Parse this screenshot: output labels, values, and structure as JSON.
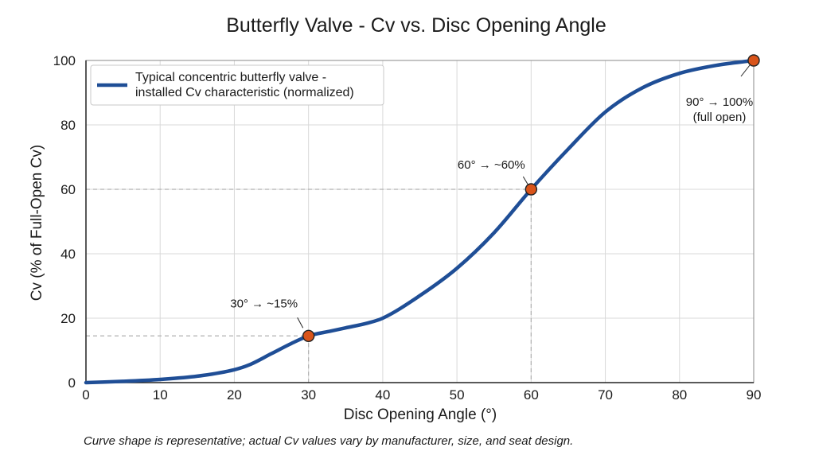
{
  "chart_data": {
    "type": "line",
    "title": "Butterfly Valve - Cv vs. Disc Opening Angle",
    "xlabel": "Disc Opening Angle (°)",
    "ylabel": "Cv (% of Full-Open Cv)",
    "xlim": [
      0,
      90
    ],
    "ylim": [
      0,
      100
    ],
    "xticks": [
      0,
      10,
      20,
      30,
      40,
      50,
      60,
      70,
      80,
      90
    ],
    "yticks": [
      0,
      20,
      40,
      60,
      80,
      100
    ],
    "grid": true,
    "legend_position": "top-left",
    "series": [
      {
        "name": "Typical concentric butterfly valve - installed Cv characteristic (normalized)",
        "legend_lines": [
          "Typical concentric butterfly valve -",
          "installed Cv characteristic (normalized)"
        ],
        "color": "#1f4e96",
        "x": [
          0,
          5,
          10,
          15,
          20,
          22,
          25,
          28,
          30,
          33,
          35,
          38,
          40,
          45,
          50,
          55,
          60,
          65,
          70,
          75,
          80,
          85,
          90
        ],
        "y": [
          0,
          0.4,
          1,
          2,
          4,
          5.5,
          9,
          12.5,
          14.5,
          16,
          17,
          18.5,
          20,
          27,
          35.5,
          46.5,
          60,
          72.5,
          84,
          91.5,
          96,
          98.5,
          100
        ]
      }
    ],
    "highlighted_points": [
      {
        "x": 30,
        "y": 14.5,
        "label_lines": [
          "30° → ~15%"
        ]
      },
      {
        "x": 60,
        "y": 60,
        "label_lines": [
          "60° → ~60%"
        ]
      },
      {
        "x": 90,
        "y": 100,
        "label_lines": [
          "90° → 100%",
          "(full open)"
        ]
      }
    ],
    "marker_color": "#d9541a",
    "footnote": "Curve shape is representative; actual Cv values vary by manufacturer, size, and seat design."
  }
}
